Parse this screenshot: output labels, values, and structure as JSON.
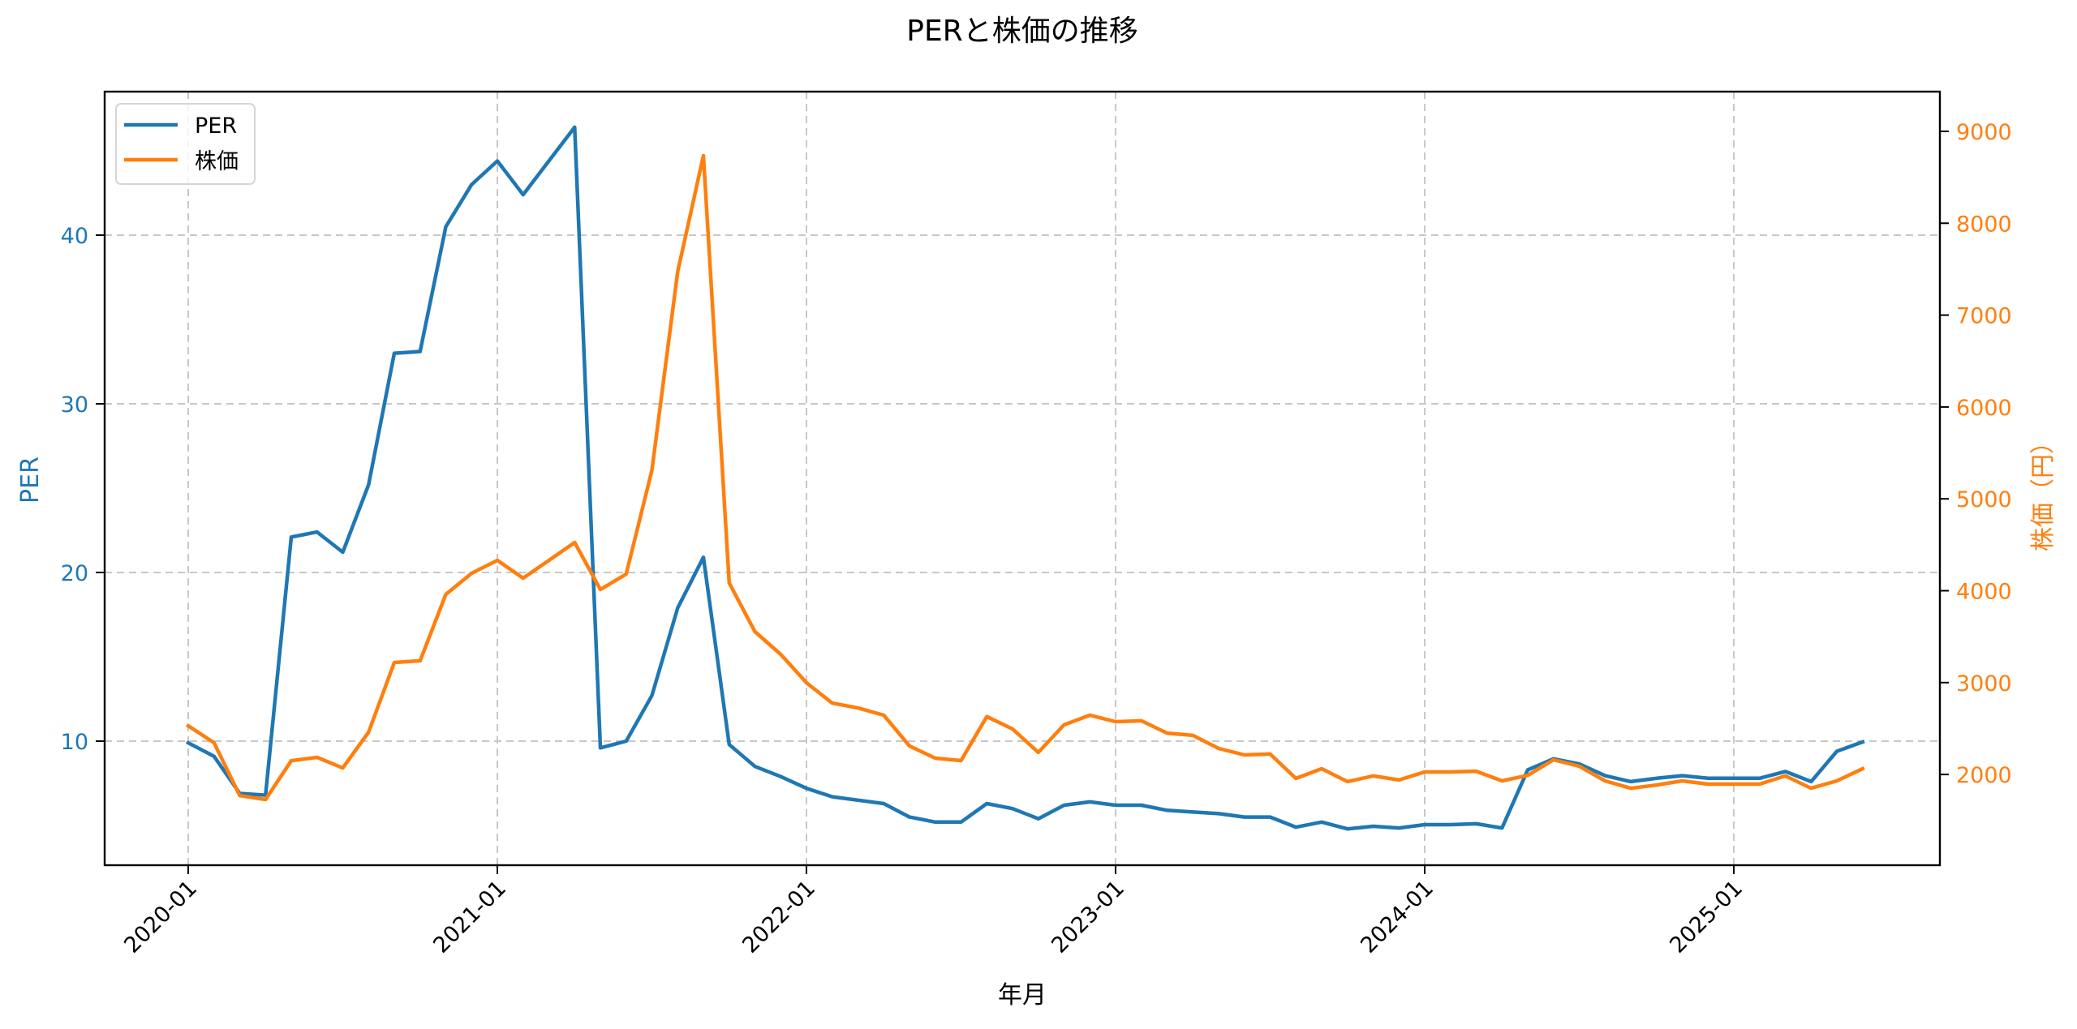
{
  "chart_data": {
    "type": "line",
    "title": "PERと株価の推移",
    "xlabel": "年月",
    "ylabel_left": "PER",
    "ylabel_right": "株価（円）",
    "x_tick_labels": [
      "2020-01",
      "2021-01",
      "2022-01",
      "2023-01",
      "2024-01",
      "2025-01"
    ],
    "y_left_ticks": [
      10,
      20,
      30,
      40
    ],
    "y_right_ticks": [
      2000,
      3000,
      4000,
      5000,
      6000,
      7000,
      8000,
      9000
    ],
    "y_left_range": [
      2.6,
      48.5
    ],
    "y_right_range": [
      1050,
      9430
    ],
    "grid": true,
    "legend_position": "upper left",
    "x": [
      "2020-01",
      "2020-02",
      "2020-03",
      "2020-04",
      "2020-05",
      "2020-06",
      "2020-07",
      "2020-08",
      "2020-09",
      "2020-10",
      "2020-11",
      "2020-12",
      "2021-01",
      "2021-02",
      "2021-03",
      "2021-04",
      "2021-05",
      "2021-06",
      "2021-07",
      "2021-08",
      "2021-09",
      "2021-10",
      "2021-11",
      "2021-12",
      "2022-01",
      "2022-02",
      "2022-03",
      "2022-04",
      "2022-05",
      "2022-06",
      "2022-07",
      "2022-08",
      "2022-09",
      "2022-10",
      "2022-11",
      "2022-12",
      "2023-01",
      "2023-02",
      "2023-03",
      "2023-04",
      "2023-05",
      "2023-06",
      "2023-07",
      "2023-08",
      "2023-09",
      "2023-10",
      "2023-11",
      "2023-12",
      "2024-01",
      "2024-02",
      "2024-03",
      "2024-04",
      "2024-05",
      "2024-06",
      "2024-07",
      "2024-08",
      "2024-09",
      "2024-10",
      "2024-11",
      "2024-12",
      "2025-01",
      "2025-02",
      "2025-03",
      "2025-04",
      "2025-05",
      "2025-06"
    ],
    "series": [
      {
        "name": "PER",
        "axis": "left",
        "color": "#1f77b4",
        "values": [
          9.9,
          9.1,
          6.9,
          6.8,
          22.1,
          22.4,
          21.2,
          25.2,
          33.0,
          33.1,
          40.5,
          43.0,
          44.4,
          42.4,
          44.4,
          46.4,
          9.6,
          10.0,
          12.7,
          17.9,
          20.9,
          9.8,
          8.5,
          7.9,
          7.2,
          6.7,
          6.5,
          6.3,
          5.5,
          5.2,
          5.2,
          6.3,
          6.0,
          5.4,
          6.2,
          6.4,
          6.2,
          6.2,
          5.9,
          5.8,
          5.7,
          5.5,
          5.5,
          4.9,
          5.2,
          4.8,
          4.95,
          4.85,
          5.05,
          5.05,
          5.1,
          4.85,
          8.3,
          8.95,
          8.65,
          7.95,
          7.6,
          7.8,
          7.95,
          7.8,
          7.8,
          7.8,
          8.2,
          7.6,
          9.4,
          9.95
        ]
      },
      {
        "name": "株価",
        "axis": "right",
        "color": "#ff7f0e",
        "values": [
          2530,
          2345,
          1770,
          1727,
          2150,
          2186,
          2071,
          2460,
          3219,
          3237,
          3960,
          4190,
          4331,
          4137,
          4330,
          4525,
          4013,
          4181,
          5310,
          7473,
          8735,
          4084,
          3554,
          3307,
          2998,
          2777,
          2724,
          2645,
          2310,
          2177,
          2151,
          2630,
          2495,
          2240,
          2540,
          2645,
          2575,
          2584,
          2450,
          2425,
          2283,
          2213,
          2222,
          1957,
          2063,
          1922,
          1984,
          1940,
          2027,
          2027,
          2035,
          1930,
          1990,
          2160,
          2090,
          1930,
          1850,
          1885,
          1930,
          1895,
          1895,
          1895,
          1984,
          1850,
          1930,
          2063
        ]
      }
    ]
  },
  "legend": {
    "items": [
      {
        "label": "PER",
        "color": "#1f77b4"
      },
      {
        "label": "株価",
        "color": "#ff7f0e"
      }
    ]
  },
  "colors": {
    "per": "#1f77b4",
    "price": "#ff7f0e",
    "grid": "#c8c8c8",
    "axis": "#000000"
  }
}
